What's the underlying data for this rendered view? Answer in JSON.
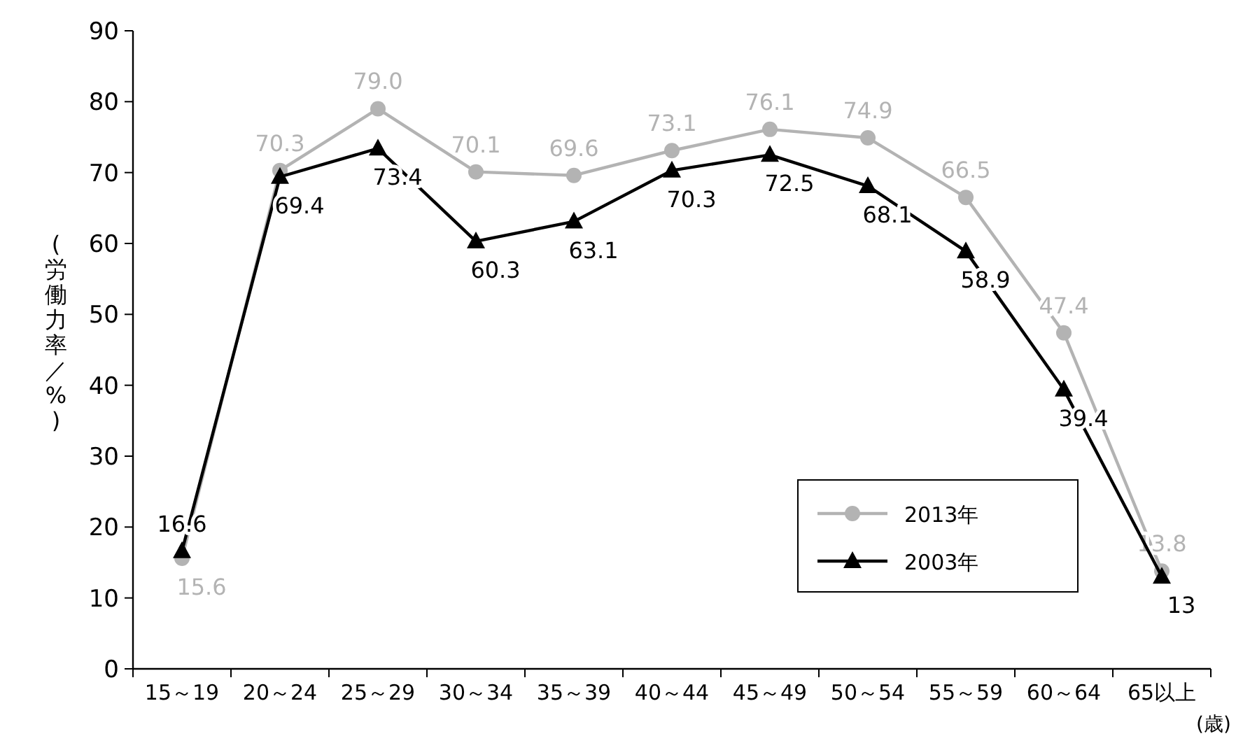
{
  "chart_data": {
    "type": "line",
    "ylabel": "(労働力率／%)",
    "xlabel": "(歳)",
    "categories": [
      "15～19",
      "20～24",
      "25～29",
      "30～34",
      "35～39",
      "40～44",
      "45～49",
      "50～54",
      "55～59",
      "60～64",
      "65以上"
    ],
    "series": [
      {
        "name": "2013年",
        "color": "#b3b3b3",
        "marker": "circle",
        "values": [
          15.6,
          70.3,
          79.0,
          70.1,
          69.6,
          73.1,
          76.1,
          74.9,
          66.5,
          47.4,
          13.8
        ],
        "value_labels": [
          "15.6",
          "70.3",
          "79.0",
          "70.1",
          "69.6",
          "73.1",
          "76.1",
          "74.9",
          "66.5",
          "47.4",
          "13.8"
        ]
      },
      {
        "name": "2003年",
        "color": "#000000",
        "marker": "triangle",
        "values": [
          16.6,
          69.4,
          73.4,
          60.3,
          63.1,
          70.3,
          72.5,
          68.1,
          58.9,
          39.4,
          13
        ],
        "value_labels": [
          "16.6",
          "69.4",
          "73.4",
          "60.3",
          "63.1",
          "70.3",
          "72.5",
          "68.1",
          "58.9",
          "39.4",
          "13"
        ]
      }
    ],
    "ylim": [
      0,
      90
    ],
    "yticks": [
      0,
      10,
      20,
      30,
      40,
      50,
      60,
      70,
      80,
      90
    ],
    "legend": "bottom right",
    "grid": false
  }
}
